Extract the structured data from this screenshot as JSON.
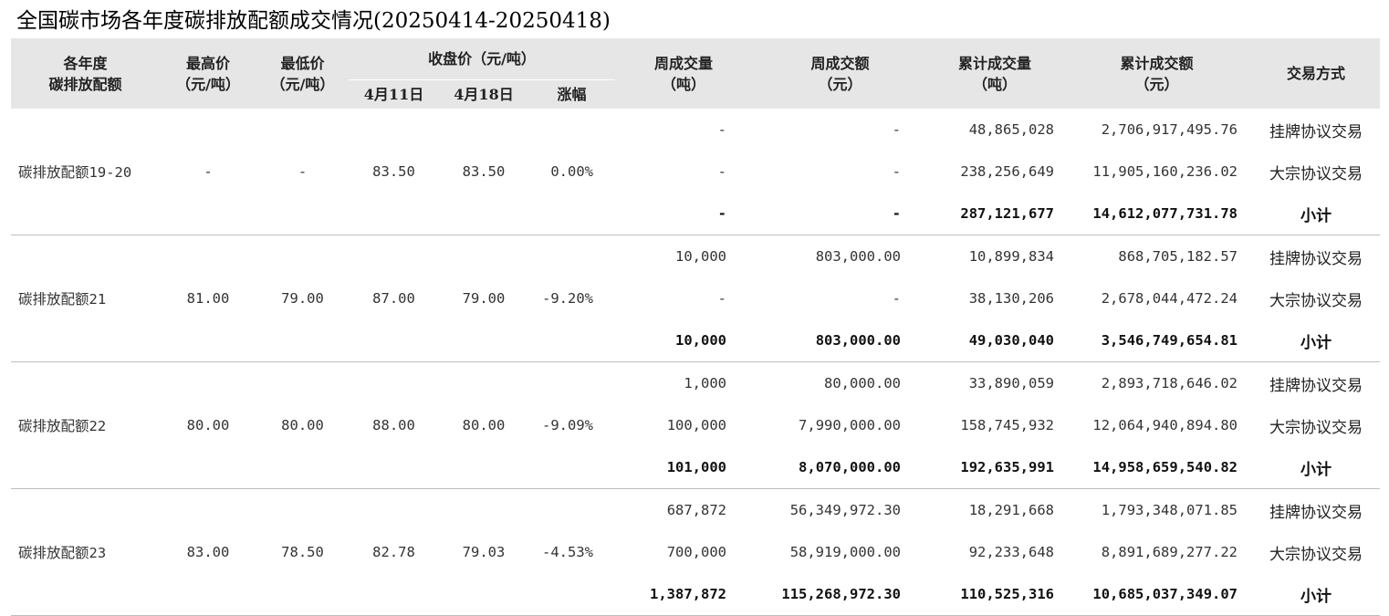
{
  "title": "全国碳市场各年度碳排放配额成交情况(20250414-20250418)",
  "headers": {
    "year": "各年度\n碳排放配额",
    "high": "最高价\n（元/吨）",
    "low": "最低价\n（元/吨）",
    "closing": "收盘价（元/吨）",
    "apr11": "4月11日",
    "apr18": "4月18日",
    "change": "涨幅",
    "week_vol": "周成交量\n（吨）",
    "week_amt": "周成交额\n（元）",
    "cum_vol": "累计成交量\n（吨）",
    "cum_amt": "累计成交额\n（元）",
    "mode": "交易方式"
  },
  "groups": [
    {
      "name": "碳排放配额19-20",
      "high": "-",
      "low": "-",
      "apr11": "83.50",
      "apr18": "83.50",
      "change": "0.00%",
      "rows": [
        {
          "week_vol": "-",
          "week_amt": "-",
          "cum_vol": "48,865,028",
          "cum_amt": "2,706,917,495.76",
          "mode": "挂牌协议交易"
        },
        {
          "week_vol": "-",
          "week_amt": "-",
          "cum_vol": "238,256,649",
          "cum_amt": "11,905,160,236.02",
          "mode": "大宗协议交易"
        },
        {
          "week_vol": "-",
          "week_amt": "-",
          "cum_vol": "287,121,677",
          "cum_amt": "14,612,077,731.78",
          "mode": "小计"
        }
      ]
    },
    {
      "name": "碳排放配额21",
      "high": "81.00",
      "low": "79.00",
      "apr11": "87.00",
      "apr18": "79.00",
      "change": "-9.20%",
      "rows": [
        {
          "week_vol": "10,000",
          "week_amt": "803,000.00",
          "cum_vol": "10,899,834",
          "cum_amt": "868,705,182.57",
          "mode": "挂牌协议交易"
        },
        {
          "week_vol": "-",
          "week_amt": "-",
          "cum_vol": "38,130,206",
          "cum_amt": "2,678,044,472.24",
          "mode": "大宗协议交易"
        },
        {
          "week_vol": "10,000",
          "week_amt": "803,000.00",
          "cum_vol": "49,030,040",
          "cum_amt": "3,546,749,654.81",
          "mode": "小计"
        }
      ]
    },
    {
      "name": "碳排放配额22",
      "high": "80.00",
      "low": "80.00",
      "apr11": "88.00",
      "apr18": "80.00",
      "change": "-9.09%",
      "rows": [
        {
          "week_vol": "1,000",
          "week_amt": "80,000.00",
          "cum_vol": "33,890,059",
          "cum_amt": "2,893,718,646.02",
          "mode": "挂牌协议交易"
        },
        {
          "week_vol": "100,000",
          "week_amt": "7,990,000.00",
          "cum_vol": "158,745,932",
          "cum_amt": "12,064,940,894.80",
          "mode": "大宗协议交易"
        },
        {
          "week_vol": "101,000",
          "week_amt": "8,070,000.00",
          "cum_vol": "192,635,991",
          "cum_amt": "14,958,659,540.82",
          "mode": "小计"
        }
      ]
    },
    {
      "name": "碳排放配额23",
      "high": "83.00",
      "low": "78.50",
      "apr11": "82.78",
      "apr18": "79.03",
      "change": "-4.53%",
      "rows": [
        {
          "week_vol": "687,872",
          "week_amt": "56,349,972.30",
          "cum_vol": "18,291,668",
          "cum_amt": "1,793,348,071.85",
          "mode": "挂牌协议交易"
        },
        {
          "week_vol": "700,000",
          "week_amt": "58,919,000.00",
          "cum_vol": "92,233,648",
          "cum_amt": "8,891,689,277.22",
          "mode": "大宗协议交易"
        },
        {
          "week_vol": "1,387,872",
          "week_amt": "115,268,972.30",
          "cum_vol": "110,525,316",
          "cum_amt": "10,685,037,349.07",
          "mode": "小计"
        }
      ]
    }
  ]
}
